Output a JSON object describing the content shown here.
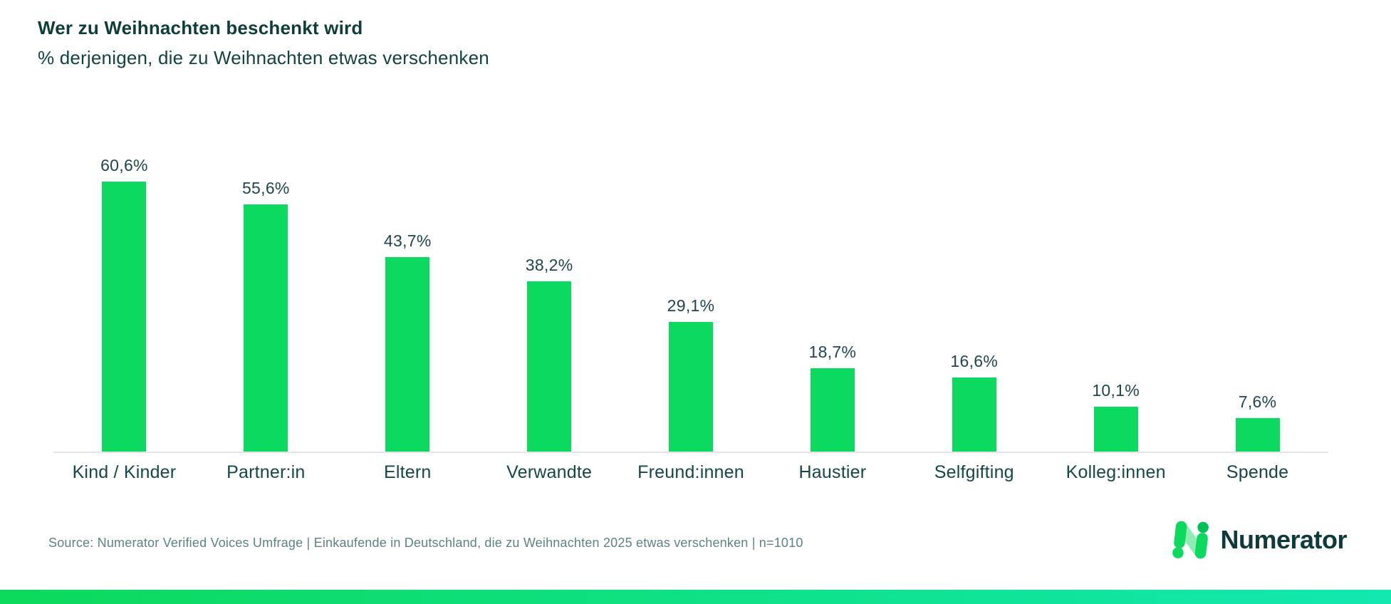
{
  "header": {
    "title": "Wer zu Weihnachten beschenkt wird",
    "subtitle": "% derjenigen, die zu Weihnachten etwas verschenken"
  },
  "chart_data": {
    "type": "bar",
    "title": "Wer zu Weihnachten beschenkt wird",
    "subtitle": "% derjenigen, die zu Weihnachten etwas verschenken",
    "categories": [
      "Kind / Kinder",
      "Partner:in",
      "Eltern",
      "Verwandte",
      "Freund:innen",
      "Haustier",
      "Selfgifting",
      "Kolleg:innen",
      "Spende"
    ],
    "values": [
      60.6,
      55.6,
      43.7,
      38.2,
      29.1,
      18.7,
      16.6,
      10.1,
      7.6
    ],
    "value_labels": [
      "60,6%",
      "55,6%",
      "43,7%",
      "38,2%",
      "29,1%",
      "18,7%",
      "16,6%",
      "10,1%",
      "7,6%"
    ],
    "xlabel": "",
    "ylabel": "",
    "ylim": [
      0,
      65
    ],
    "grid": false,
    "legend": false,
    "bar_color": "#0bd960"
  },
  "footer": {
    "source": "Source: Numerator Verified Voices Umfrage | Einkaufende in Deutschland, die zu Weihnachten 2025 etwas verschenken | n=1010",
    "logo_text": "Numerator"
  },
  "colors": {
    "bar_green": "#0bd960",
    "dark_teal": "#0e3d3a",
    "axis_gray": "#e4e7e5",
    "source_gray_teal": "#5e827f",
    "logo_bright_green": "#0bda5f",
    "logo_light_green": "#8fedb4",
    "logo_deep_green": "#00c157",
    "strip_gradient_start": "#0bd95b",
    "strip_gradient_end": "#12e8b0"
  }
}
